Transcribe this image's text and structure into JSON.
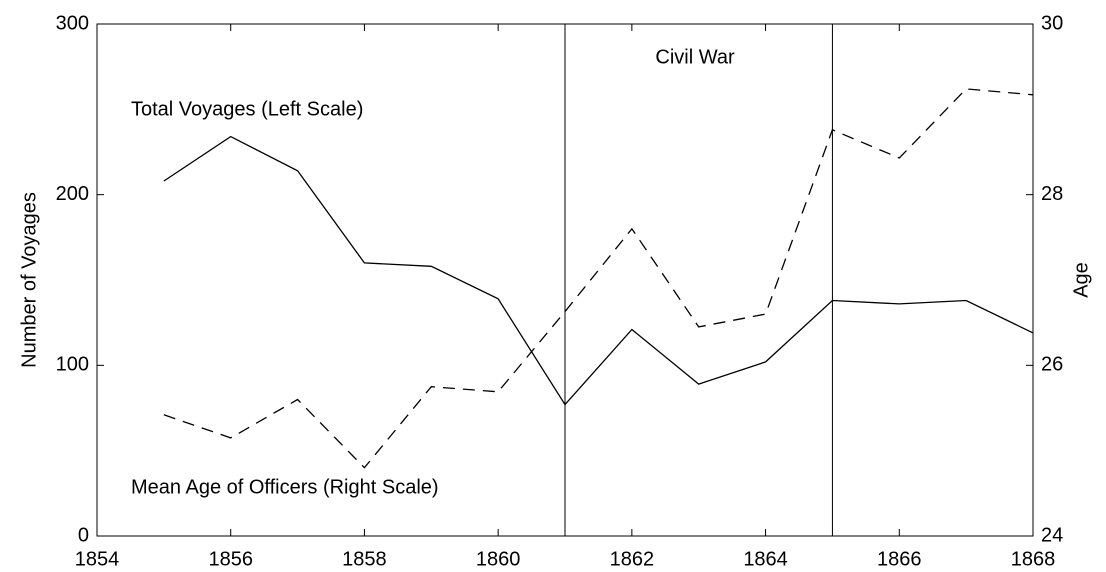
{
  "chart_data": {
    "type": "line",
    "x": [
      1855,
      1856,
      1857,
      1858,
      1859,
      1860,
      1861,
      1862,
      1863,
      1864,
      1865,
      1866,
      1867,
      1868
    ],
    "series": [
      {
        "name": "Total Voyages (Left Scale)",
        "color": "#000000",
        "dash": "solid",
        "values": [
          208,
          234,
          214,
          160,
          158,
          139,
          77,
          121,
          89,
          102,
          138,
          136,
          138,
          119
        ]
      },
      {
        "name": "Mean Age of Officers (Right Scale)",
        "color": "#000000",
        "dash": "dashed",
        "axis": "y2",
        "values": [
          25.42,
          25.15,
          25.6,
          24.8,
          25.75,
          25.69,
          26.63,
          27.6,
          26.45,
          26.6,
          28.76,
          28.43,
          29.24,
          29.17
        ]
      }
    ],
    "xlim": [
      1854,
      1868
    ],
    "xticks": [
      1854,
      1856,
      1858,
      1860,
      1862,
      1864,
      1866,
      1868
    ],
    "ylim": [
      0,
      300
    ],
    "yticks": [
      0,
      100,
      200,
      300
    ],
    "y2lim": [
      24,
      30
    ],
    "y2ticks": [
      24,
      26,
      28,
      30
    ],
    "ylabel": "Number of Voyages",
    "y2label": "Age",
    "vlines": [
      1861,
      1865
    ],
    "annotation": "Civil War"
  }
}
